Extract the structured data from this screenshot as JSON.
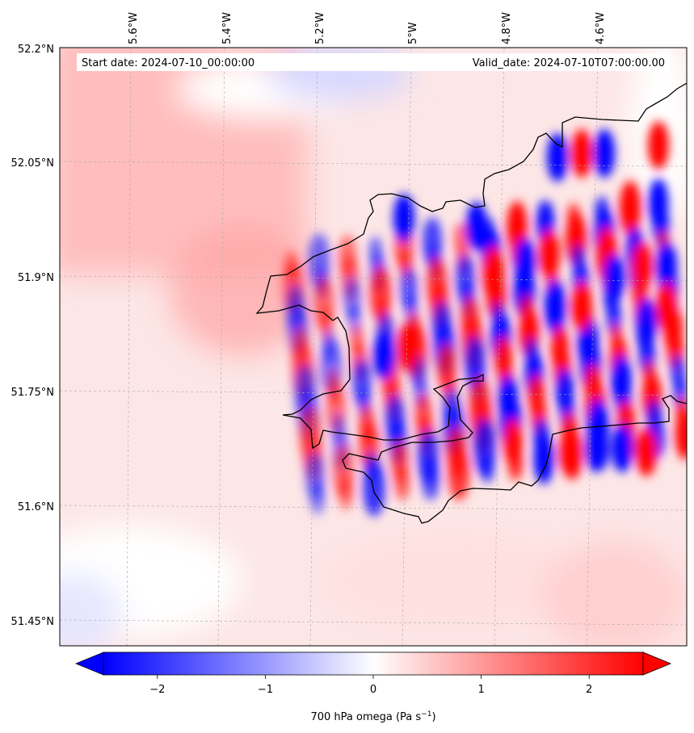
{
  "header": {
    "start_date": "Start date: 2024-07-10_00:00:00",
    "valid_date": "Valid_date: 2024-07-10T07:00:00.00"
  },
  "axes": {
    "lon_labels": [
      "5.6°W",
      "5.4°W",
      "5.2°W",
      "5°W",
      "4.8°W",
      "4.6°W"
    ],
    "lat_labels": [
      "52.2°N",
      "52.05°N",
      "51.9°N",
      "51.75°N",
      "51.6°N",
      "51.45°N"
    ],
    "lon_range": [
      -5.75,
      -4.45
    ],
    "lat_range": [
      51.42,
      52.2
    ]
  },
  "colorbar": {
    "tick_labels": [
      "−2",
      "−1",
      "0",
      "1",
      "2"
    ],
    "tick_values": [
      -2,
      -1,
      0,
      1,
      2
    ],
    "range": [
      -2.5,
      2.5
    ],
    "label_main": "700 hPa omega (Pa s",
    "label_exp": "−1",
    "label_close": ")",
    "colormap": "bwr",
    "extend": "both"
  },
  "colors": {
    "negative": "#0000ff",
    "neutral": "#ffffff",
    "positive": "#ff0000",
    "coastline": "#000000",
    "gridline": "#aaaaaa"
  }
}
